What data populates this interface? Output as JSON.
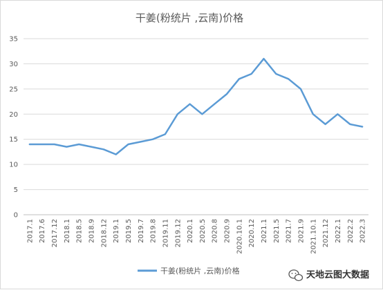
{
  "chart_data": {
    "type": "line",
    "title": "干姜(粉统片 ,云南)价格",
    "xlabel": "",
    "ylabel": "",
    "ylim": [
      0,
      35
    ],
    "yticks": [
      0,
      5,
      10,
      15,
      20,
      25,
      30,
      35
    ],
    "grid": true,
    "legend_position": "bottom",
    "x": [
      "2017.1",
      "2017.6",
      "2017.12",
      "2018.1",
      "2018.5",
      "2018.9",
      "2018.12",
      "2019.1",
      "2019.5",
      "2019.7",
      "2019.8",
      "2019.11",
      "2019.12",
      "2020.1",
      "2020.5",
      "2020.8",
      "2020.9",
      "2020.10.1",
      "2020.12",
      "2021.1",
      "2021.5",
      "2021.7",
      "2021.9",
      "2021.10.1",
      "2021.12",
      "2022.1",
      "2022.2",
      "2022.3"
    ],
    "series": [
      {
        "name": "干姜(粉统片 ,云南)价格",
        "color": "#5b9bd5",
        "values": [
          14,
          14,
          14,
          13.5,
          14,
          13.5,
          13,
          12,
          14,
          14.5,
          15,
          16,
          20,
          22,
          20,
          22,
          24,
          27,
          28,
          31,
          28,
          27,
          25,
          20,
          18,
          20,
          18,
          17.5
        ]
      }
    ]
  },
  "watermark": {
    "icon": "wechat-bubble-icon",
    "text": "天地云图大数据"
  }
}
